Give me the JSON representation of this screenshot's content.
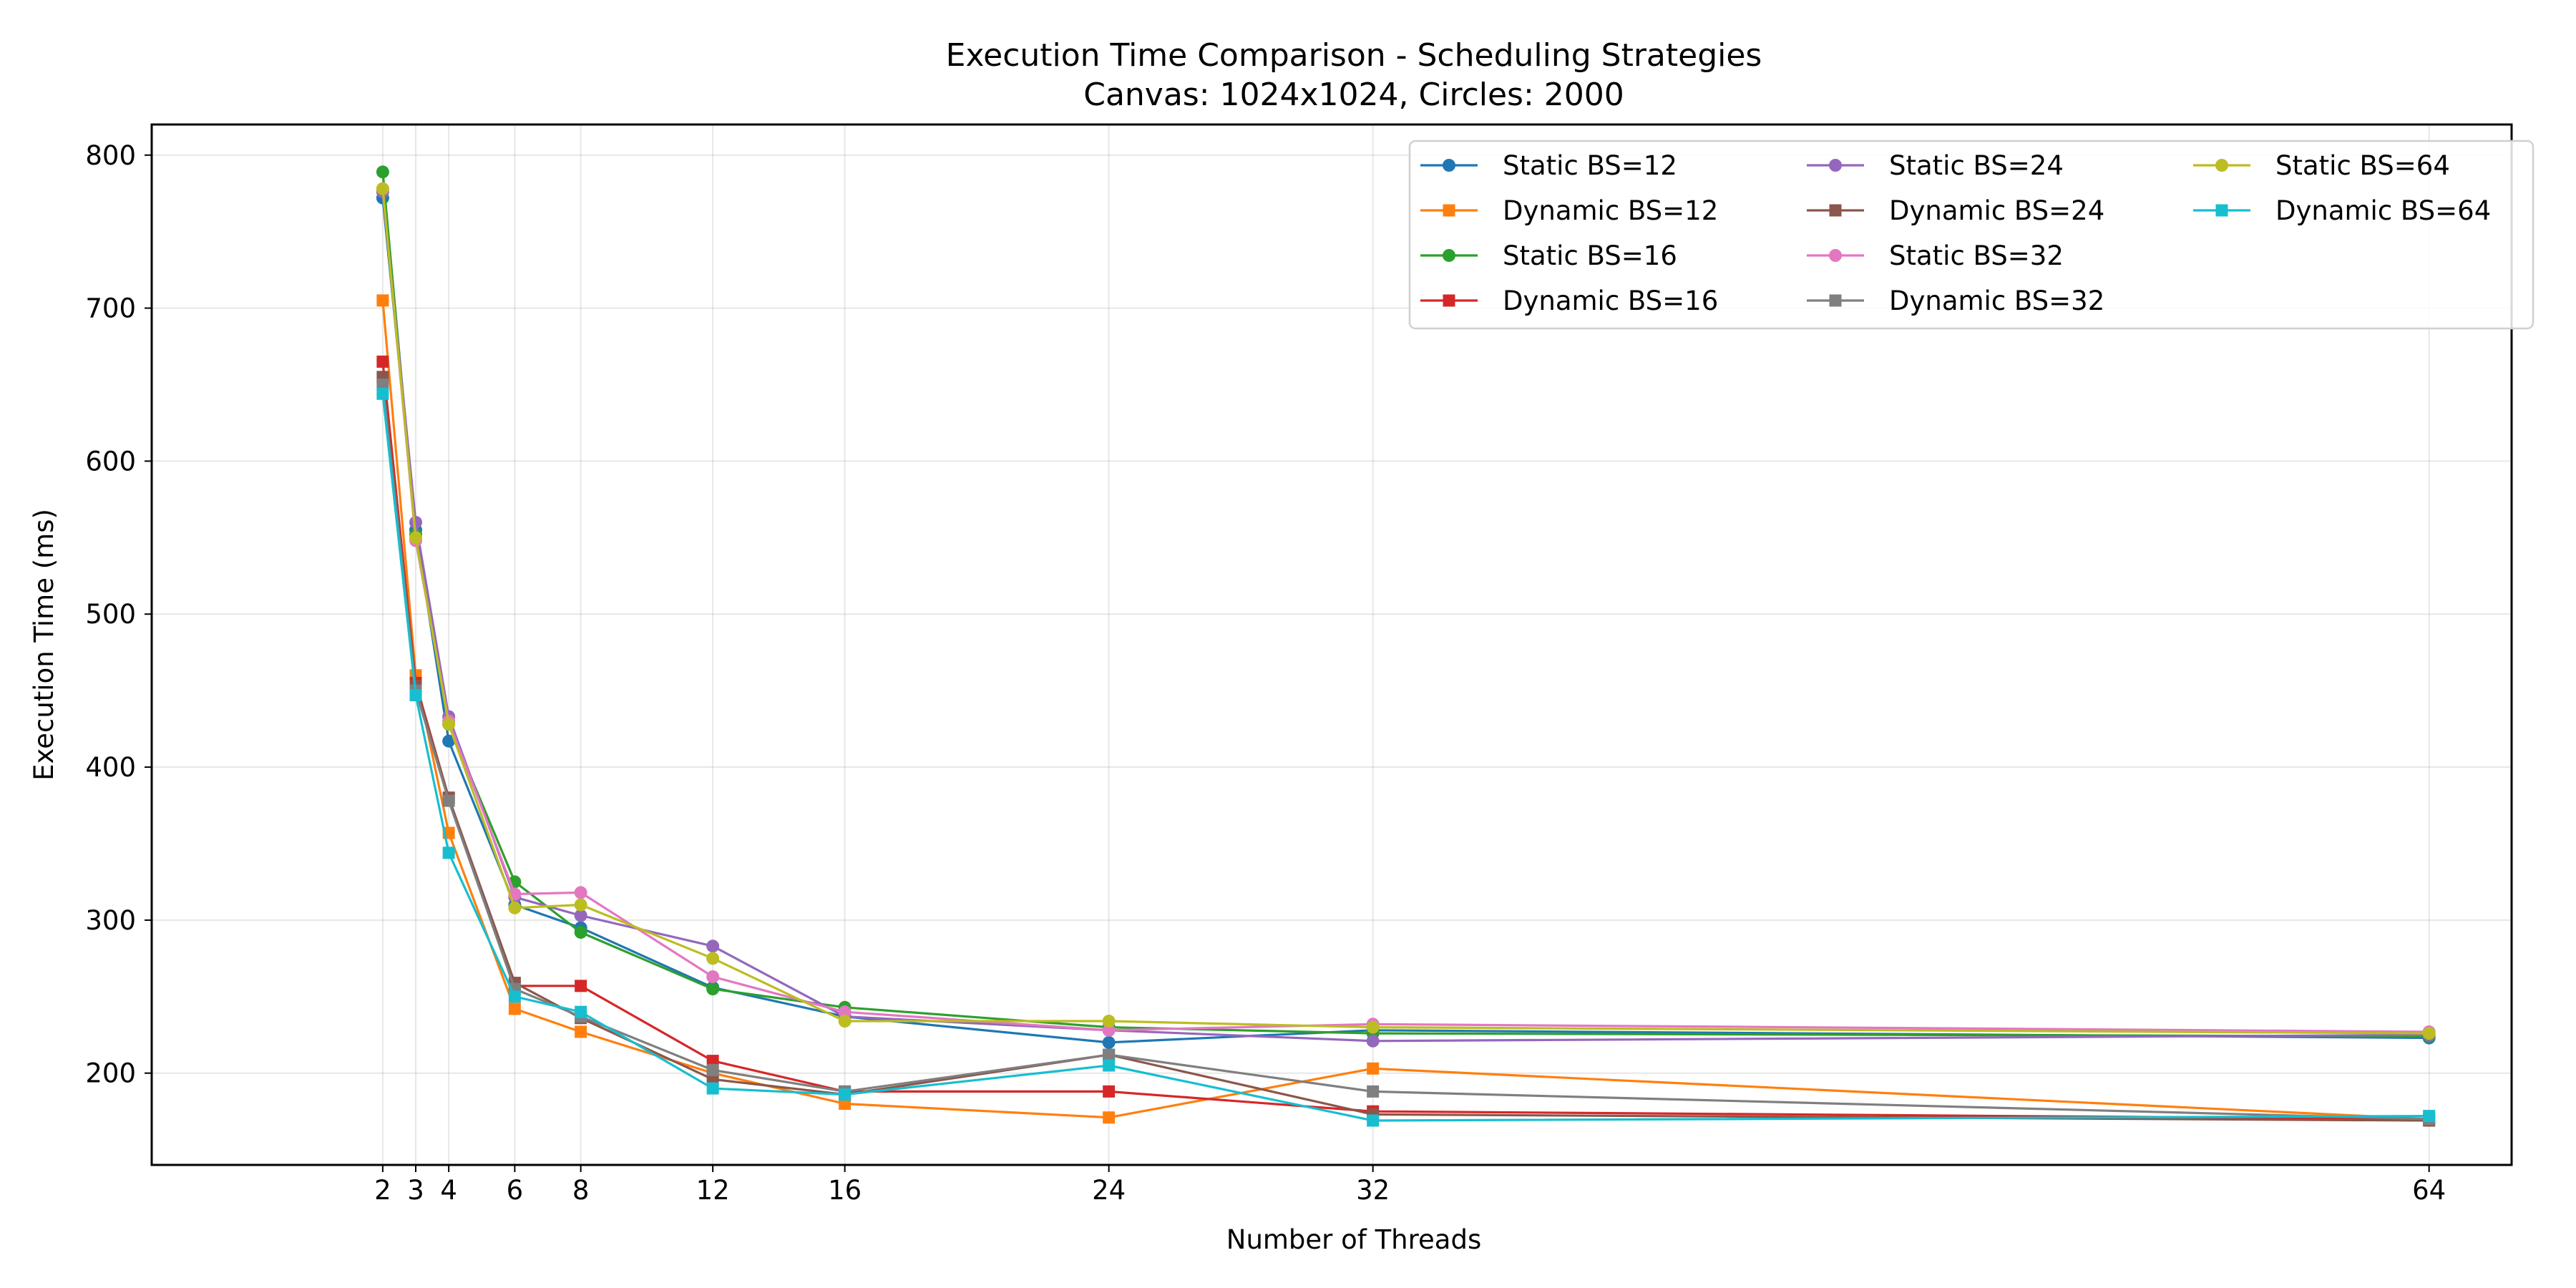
{
  "chart_data": {
    "type": "line",
    "title": "Execution Time Comparison - Scheduling Strategies",
    "subtitle": "Canvas: 1024x1024, Circles: 2000",
    "xlabel": "Number of Threads",
    "ylabel": "Execution Time (ms)",
    "x": [
      2,
      3,
      4,
      6,
      8,
      12,
      16,
      24,
      32,
      64
    ],
    "xlim": [
      -5,
      66.5
    ],
    "ylim": [
      140,
      820
    ],
    "xticks": [
      2,
      3,
      4,
      6,
      8,
      12,
      16,
      24,
      32,
      64
    ],
    "yticks": [
      200,
      300,
      400,
      500,
      600,
      700,
      800
    ],
    "grid": true,
    "legend_position": "top-right",
    "legend_columns": 3,
    "series": [
      {
        "name": "Static BS=12",
        "color": "#1f77b4",
        "marker": "circle",
        "values": [
          772,
          555,
          417,
          310,
          295,
          256,
          237,
          220,
          228,
          223
        ]
      },
      {
        "name": "Dynamic BS=12",
        "color": "#ff7f0e",
        "marker": "square",
        "values": [
          705,
          460,
          357,
          242,
          227,
          200,
          180,
          171,
          203,
          170
        ]
      },
      {
        "name": "Static BS=16",
        "color": "#2ca02c",
        "marker": "circle",
        "values": [
          789,
          552,
          428,
          325,
          292,
          255,
          243,
          230,
          226,
          224
        ]
      },
      {
        "name": "Dynamic BS=16",
        "color": "#d62728",
        "marker": "square",
        "values": [
          665,
          455,
          380,
          257,
          257,
          208,
          188,
          188,
          175,
          170
        ]
      },
      {
        "name": "Static BS=24",
        "color": "#9467bd",
        "marker": "circle",
        "values": [
          776,
          560,
          433,
          315,
          303,
          283,
          237,
          228,
          221,
          225
        ]
      },
      {
        "name": "Dynamic BS=24",
        "color": "#8c564b",
        "marker": "square",
        "values": [
          655,
          453,
          380,
          259,
          236,
          196,
          186,
          212,
          173,
          169
        ]
      },
      {
        "name": "Static BS=32",
        "color": "#e377c2",
        "marker": "circle",
        "values": [
          778,
          548,
          430,
          317,
          318,
          263,
          240,
          228,
          232,
          227
        ]
      },
      {
        "name": "Dynamic BS=32",
        "color": "#7f7f7f",
        "marker": "square",
        "values": [
          650,
          450,
          378,
          255,
          237,
          202,
          188,
          212,
          188,
          170
        ]
      },
      {
        "name": "Static BS=64",
        "color": "#bcbd22",
        "marker": "circle",
        "values": [
          778,
          550,
          428,
          308,
          310,
          275,
          234,
          234,
          230,
          226
        ]
      },
      {
        "name": "Dynamic BS=64",
        "color": "#17becf",
        "marker": "square",
        "values": [
          644,
          447,
          344,
          250,
          240,
          190,
          186,
          205,
          169,
          172
        ]
      }
    ]
  }
}
